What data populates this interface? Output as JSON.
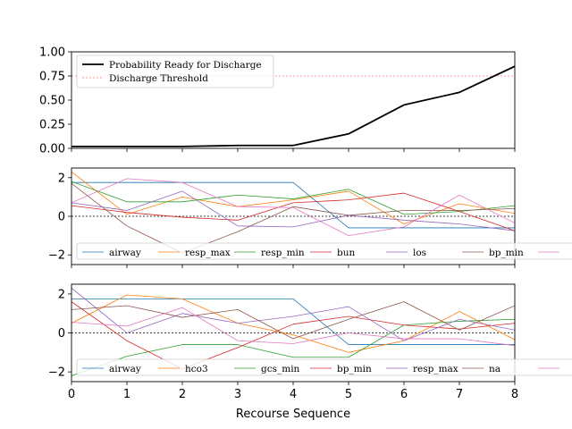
{
  "xlabel": "Recourse Sequence",
  "chart_data": [
    {
      "type": "line",
      "x": [
        0,
        1,
        2,
        3,
        4,
        5,
        6,
        7,
        8
      ],
      "xlim": [
        0,
        8
      ],
      "ylim": [
        0,
        1
      ],
      "yticks": [
        0.0,
        0.25,
        0.5,
        0.75,
        1.0
      ],
      "ytick_labels": [
        "0.00",
        "0.25",
        "0.50",
        "0.75",
        "1.00"
      ],
      "series": [
        {
          "name": "Probability Ready for Discharge",
          "color": "#000000",
          "values": [
            0.02,
            0.02,
            0.02,
            0.03,
            0.03,
            0.15,
            0.45,
            0.58,
            0.85
          ]
        }
      ],
      "threshold": {
        "name": "Discharge Threshold",
        "value": 0.75,
        "color": "#f08080"
      },
      "legend_position": "top-left"
    },
    {
      "type": "line",
      "x": [
        0,
        1,
        2,
        3,
        4,
        5,
        6,
        7,
        8
      ],
      "xlim": [
        0,
        8
      ],
      "ylim": [
        -2.5,
        2.5
      ],
      "yticks": [
        -2,
        0,
        2
      ],
      "ytick_labels": [
        "−2",
        "0",
        "2"
      ],
      "zero_line": true,
      "series": [
        {
          "name": "airway",
          "color": "#1f77b4",
          "values": [
            1.75,
            1.75,
            1.75,
            1.75,
            1.75,
            -0.6,
            -0.6,
            -0.6,
            -0.6
          ]
        },
        {
          "name": "resp_max",
          "color": "#ff7f0e",
          "values": [
            2.3,
            0.1,
            1.0,
            0.5,
            0.85,
            1.3,
            -0.4,
            0.65,
            0.15
          ]
        },
        {
          "name": "resp_min",
          "color": "#2ca02c",
          "values": [
            1.8,
            0.75,
            0.75,
            1.1,
            0.9,
            1.4,
            0.1,
            0.25,
            0.55
          ]
        },
        {
          "name": "bun",
          "color": "#d62728",
          "values": [
            0.55,
            0.2,
            -0.05,
            -0.2,
            0.7,
            0.85,
            1.2,
            0.25,
            -0.75
          ]
        },
        {
          "name": "los",
          "color": "#9467bd",
          "values": [
            0.7,
            0.3,
            1.3,
            -0.5,
            -0.55,
            0.05,
            -0.2,
            -0.4,
            -0.75
          ]
        },
        {
          "name": "bp_min",
          "color": "#8c564b",
          "values": [
            1.7,
            -0.5,
            -1.9,
            -0.8,
            0.5,
            0.05,
            0.3,
            0.3,
            0.4
          ]
        },
        {
          "name": "",
          "color": "#e377c2",
          "values": [
            0.7,
            1.95,
            1.75,
            0.5,
            0.45,
            -1.0,
            -0.55,
            1.1,
            -0.35
          ]
        }
      ],
      "legend_position": "lower-center"
    },
    {
      "type": "line",
      "x": [
        0,
        1,
        2,
        3,
        4,
        5,
        6,
        7,
        8
      ],
      "xlim": [
        0,
        8
      ],
      "ylim": [
        -2.5,
        2.5
      ],
      "yticks": [
        -2,
        0,
        2
      ],
      "ytick_labels": [
        "−2",
        "0",
        "2"
      ],
      "xticks": [
        0,
        1,
        2,
        3,
        4,
        5,
        6,
        7,
        8
      ],
      "zero_line": true,
      "series": [
        {
          "name": "airway",
          "color": "#1f77b4",
          "values": [
            1.75,
            1.75,
            1.75,
            1.75,
            1.75,
            -0.6,
            -0.6,
            -0.6,
            -0.6
          ]
        },
        {
          "name": "hco3",
          "color": "#ff7f0e",
          "values": [
            0.5,
            1.95,
            1.75,
            0.5,
            -0.1,
            -1.0,
            -0.4,
            1.1,
            -0.35
          ]
        },
        {
          "name": "gcs_min",
          "color": "#2ca02c",
          "values": [
            -2.2,
            -1.2,
            -0.6,
            -0.6,
            -1.25,
            -1.25,
            0.4,
            0.6,
            0.7
          ]
        },
        {
          "name": "bp_min",
          "color": "#d62728",
          "values": [
            1.6,
            -0.4,
            -1.85,
            -0.75,
            0.45,
            0.85,
            0.4,
            0.2,
            0.5
          ]
        },
        {
          "name": "resp_max",
          "color": "#9467bd",
          "values": [
            2.3,
            0.0,
            1.0,
            0.5,
            0.85,
            1.35,
            -0.4,
            0.7,
            0.15
          ]
        },
        {
          "name": "na",
          "color": "#8c564b",
          "values": [
            1.2,
            1.4,
            0.8,
            1.2,
            -0.3,
            0.7,
            1.6,
            0.15,
            1.4
          ]
        },
        {
          "name": "",
          "color": "#e377c2",
          "values": [
            0.55,
            0.35,
            1.3,
            -0.4,
            -0.55,
            0.0,
            -0.3,
            -0.3,
            -0.65
          ]
        }
      ],
      "legend_position": "lower-center"
    }
  ]
}
